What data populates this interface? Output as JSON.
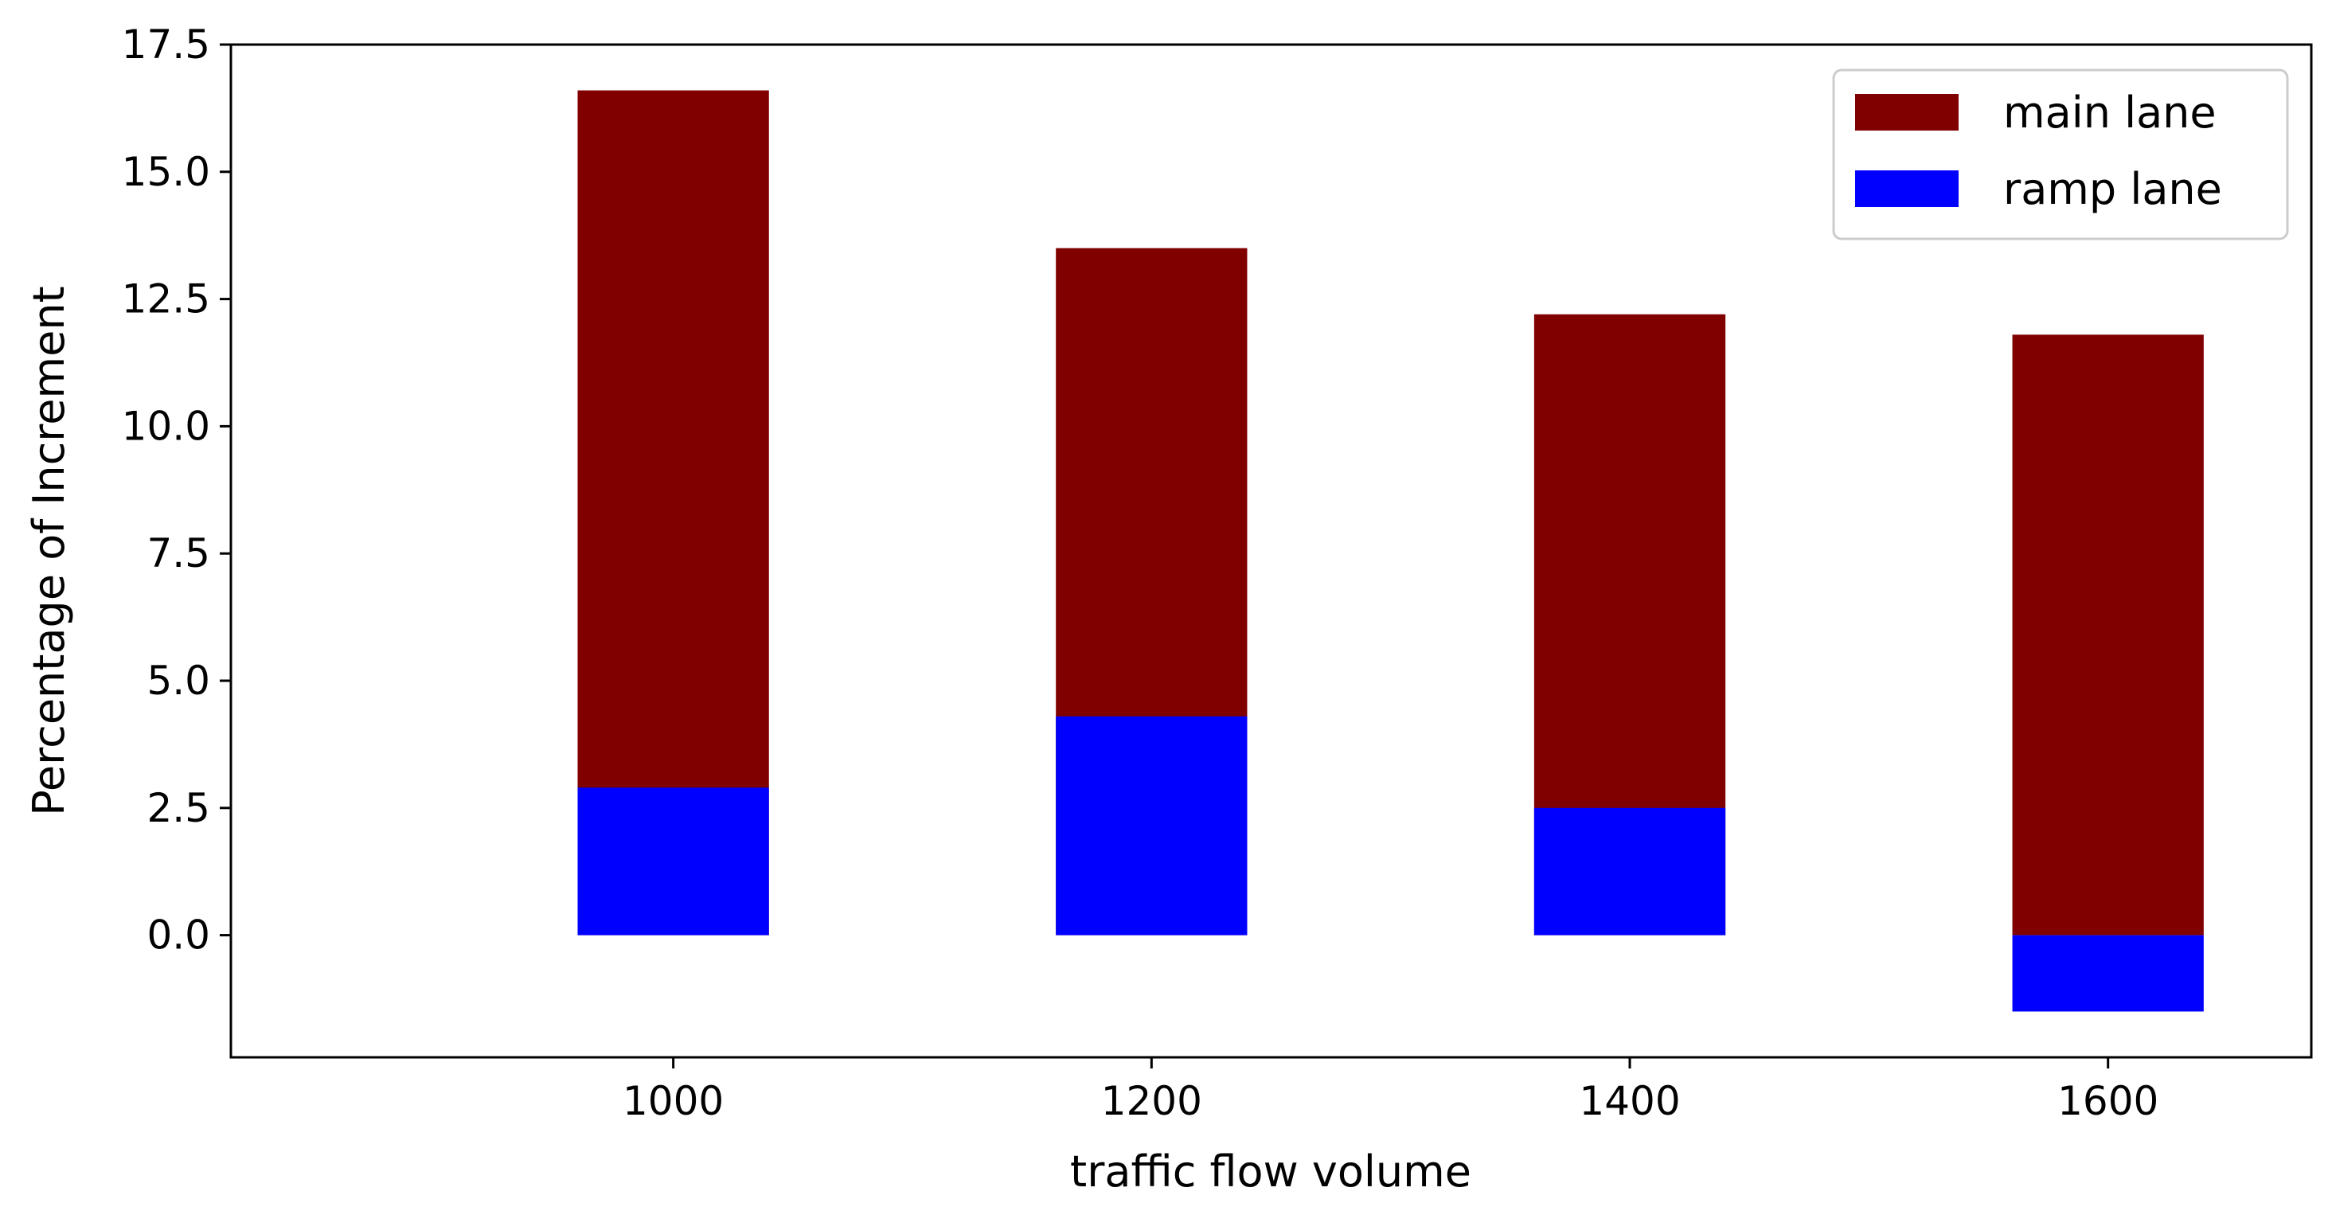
{
  "chart_data": {
    "type": "bar",
    "stacked": false,
    "categories": [
      "1000",
      "1200",
      "1400",
      "1600"
    ],
    "series": [
      {
        "name": "main lane",
        "color": "#800000",
        "values": [
          16.6,
          13.5,
          12.2,
          11.8
        ]
      },
      {
        "name": "ramp lane",
        "color": "#0000ff",
        "values": [
          2.9,
          4.3,
          2.5,
          -1.5
        ]
      }
    ],
    "title": "",
    "xlabel": "traffic flow volume",
    "ylabel": "Percentage of Increment",
    "ylim": [
      -2.4,
      17.5
    ],
    "xlim": [
      815,
      1685
    ],
    "yticks": [
      "0.0",
      "2.5",
      "5.0",
      "7.5",
      "10.0",
      "12.5",
      "15.0",
      "17.5"
    ],
    "bar_width_units": 80,
    "grid": false,
    "legend_position": "top-right"
  }
}
